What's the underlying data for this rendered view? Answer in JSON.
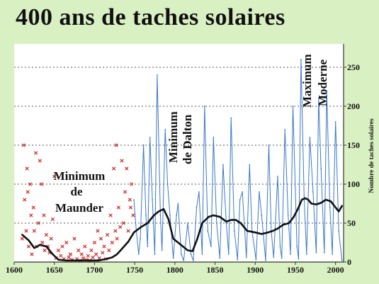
{
  "chart_data": {
    "type": "line",
    "title": "400 ans de taches solaires",
    "xlabel": "",
    "ylabel": "Nombre de taches solaires",
    "xlim": [
      1600,
      2010
    ],
    "ylim": [
      0,
      280
    ],
    "grid": "horizontal dotted",
    "x_ticks": [
      1600,
      1650,
      1700,
      1750,
      1800,
      1850,
      1900,
      1950,
      2000
    ],
    "y_ticks": [
      0,
      50,
      100,
      150,
      200,
      250
    ],
    "annotations": [
      {
        "lines": [
          "Minimum",
          "de",
          "Maunder"
        ]
      },
      {
        "lines": [
          "Minimum",
          "de Dalton"
        ]
      },
      {
        "lines": [
          "Maximum",
          "Moderne"
        ]
      }
    ],
    "series": [
      {
        "color": "#3a78c8",
        "style": "thin line",
        "x": [
          1749,
          1752,
          1755,
          1757,
          1761,
          1764,
          1766,
          1769,
          1772,
          1775,
          1778,
          1782,
          1784,
          1788,
          1791,
          1794,
          1798,
          1802,
          1804,
          1808,
          1811,
          1816,
          1820,
          1823,
          1827,
          1830,
          1834,
          1837,
          1841,
          1845,
          1848,
          1852,
          1856,
          1860,
          1864,
          1867,
          1870,
          1874,
          1878,
          1881,
          1884,
          1889,
          1893,
          1896,
          1901,
          1905,
          1908,
          1913,
          1917,
          1920,
          1923,
          1928,
          1931,
          1933,
          1937,
          1941,
          1944,
          1947,
          1952,
          1954,
          1957,
          1961,
          1964,
          1968,
          1972,
          1976,
          1979,
          1982,
          1986,
          1989,
          1993,
          1996,
          2000,
          2004,
          2008
        ],
        "y": [
          80,
          40,
          10,
          30,
          150,
          60,
          20,
          160,
          80,
          10,
          240,
          60,
          15,
          170,
          100,
          60,
          5,
          60,
          75,
          10,
          2,
          50,
          10,
          2,
          70,
          90,
          10,
          200,
          40,
          20,
          160,
          50,
          5,
          125,
          50,
          10,
          185,
          40,
          3,
          80,
          90,
          6,
          125,
          40,
          3,
          90,
          60,
          2,
          150,
          40,
          6,
          110,
          20,
          5,
          170,
          60,
          10,
          200,
          20,
          4,
          260,
          80,
          10,
          160,
          90,
          12,
          210,
          120,
          12,
          220,
          70,
          10,
          180,
          40,
          2
        ]
      },
      {
        "color": "#cc2222",
        "style": "crosses",
        "x": [
          1610,
          1612,
          1613,
          1615,
          1616,
          1617,
          1618,
          1620,
          1621,
          1622,
          1624,
          1625,
          1627,
          1628,
          1630,
          1632,
          1634,
          1635,
          1637,
          1638,
          1640,
          1642,
          1644,
          1646,
          1648,
          1650,
          1652,
          1655,
          1658,
          1660,
          1662,
          1665,
          1668,
          1670,
          1672,
          1675,
          1678,
          1680,
          1682,
          1684,
          1686,
          1688,
          1690,
          1692,
          1694,
          1696,
          1698,
          1700,
          1702,
          1704,
          1706,
          1708,
          1710,
          1712,
          1714,
          1716,
          1718,
          1720,
          1722,
          1724,
          1726,
          1727,
          1728,
          1730,
          1732,
          1734,
          1736,
          1738,
          1740,
          1742,
          1744,
          1745,
          1746,
          1748
        ],
        "y": [
          30,
          150,
          80,
          40,
          120,
          90,
          20,
          100,
          60,
          10,
          70,
          40,
          140,
          20,
          50,
          130,
          100,
          25,
          60,
          15,
          35,
          20,
          12,
          30,
          55,
          110,
          5,
          15,
          8,
          20,
          4,
          25,
          6,
          10,
          3,
          30,
          4,
          15,
          2,
          10,
          5,
          20,
          3,
          8,
          2,
          15,
          6,
          25,
          10,
          40,
          5,
          30,
          12,
          20,
          4,
          35,
          15,
          60,
          25,
          120,
          40,
          150,
          30,
          70,
          45,
          130,
          50,
          90,
          120,
          40,
          80,
          70,
          100,
          60
        ]
      },
      {
        "color": "#111111",
        "style": "thick smoothed line",
        "x": [
          1610,
          1618,
          1625,
          1632,
          1640,
          1648,
          1655,
          1665,
          1680,
          1695,
          1705,
          1715,
          1722,
          1728,
          1735,
          1742,
          1749,
          1758,
          1766,
          1774,
          1780,
          1786,
          1792,
          1798,
          1804,
          1810,
          1816,
          1822,
          1828,
          1834,
          1842,
          1848,
          1856,
          1864,
          1870,
          1876,
          1882,
          1890,
          1900,
          1908,
          1916,
          1922,
          1928,
          1935,
          1942,
          1948,
          1954,
          1958,
          1962,
          1966,
          1970,
          1976,
          1982,
          1988,
          1994,
          2000,
          2004,
          2008
        ],
        "y": [
          35,
          28,
          18,
          22,
          20,
          10,
          3,
          2,
          2,
          2,
          2,
          4,
          6,
          10,
          18,
          26,
          38,
          45,
          50,
          60,
          65,
          68,
          55,
          30,
          25,
          20,
          15,
          14,
          30,
          50,
          58,
          60,
          58,
          52,
          54,
          54,
          50,
          40,
          38,
          36,
          38,
          40,
          43,
          48,
          50,
          58,
          70,
          80,
          82,
          80,
          75,
          74,
          76,
          80,
          78,
          70,
          65,
          72
        ]
      }
    ]
  }
}
